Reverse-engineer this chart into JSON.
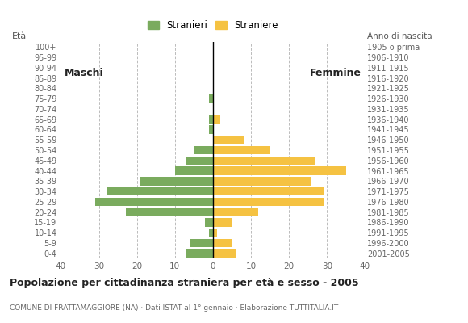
{
  "age_groups": [
    "0-4",
    "5-9",
    "10-14",
    "15-19",
    "20-24",
    "25-29",
    "30-34",
    "35-39",
    "40-44",
    "45-49",
    "50-54",
    "55-59",
    "60-64",
    "65-69",
    "70-74",
    "75-79",
    "80-84",
    "85-89",
    "90-94",
    "95-99",
    "100+"
  ],
  "birth_years": [
    "2001-2005",
    "1996-2000",
    "1991-1995",
    "1986-1990",
    "1981-1985",
    "1976-1980",
    "1971-1975",
    "1966-1970",
    "1961-1965",
    "1956-1960",
    "1951-1955",
    "1946-1950",
    "1941-1945",
    "1936-1940",
    "1931-1935",
    "1926-1930",
    "1921-1925",
    "1916-1920",
    "1911-1915",
    "1906-1910",
    "1905 o prima"
  ],
  "males": [
    7,
    6,
    1,
    2,
    23,
    31,
    28,
    19,
    10,
    7,
    5,
    0,
    1,
    1,
    0,
    1,
    0,
    0,
    0,
    0,
    0
  ],
  "females": [
    6,
    5,
    1,
    5,
    12,
    29,
    29,
    26,
    35,
    27,
    15,
    8,
    0,
    2,
    0,
    0,
    0,
    0,
    0,
    0,
    0
  ],
  "male_color": "#7aab5e",
  "female_color": "#f5c242",
  "background_color": "#ffffff",
  "grid_color": "#bbbbbb",
  "title": "Popolazione per cittadinanza straniera per età e sesso - 2005",
  "subtitle": "COMUNE DI FRATTAMAGGIORE (NA) · Dati ISTAT al 1° gennaio · Elaborazione TUTTITALIA.IT",
  "label_eta": "Età",
  "label_maschi": "Maschi",
  "label_femmine": "Femmine",
  "legend_males": "Stranieri",
  "legend_females": "Straniere",
  "anno_nascita_label": "Anno di nascita",
  "xlim": 40,
  "bar_height": 0.82
}
